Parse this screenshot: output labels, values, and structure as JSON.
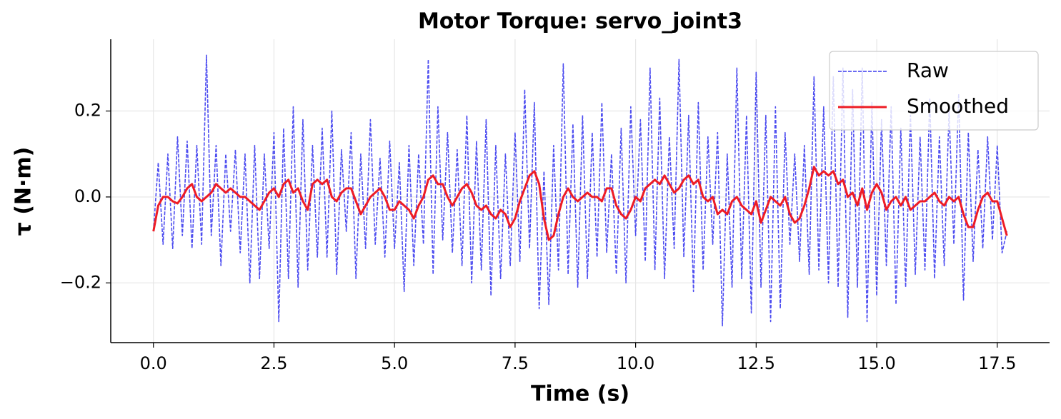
{
  "chart_data": {
    "type": "line",
    "title": "Motor Torque: servo_joint3",
    "x_label": "Time (s)",
    "y_label": "τ (N·m)",
    "x": [
      0,
      0.1,
      0.2,
      0.3,
      0.4,
      0.5,
      0.6,
      0.7,
      0.8,
      0.9,
      1,
      1.1,
      1.2,
      1.3,
      1.4,
      1.5,
      1.6,
      1.7,
      1.8,
      1.9,
      2,
      2.1,
      2.2,
      2.3,
      2.4,
      2.5,
      2.6,
      2.7,
      2.8,
      2.9,
      3,
      3.1,
      3.2,
      3.3,
      3.4,
      3.5,
      3.6,
      3.7,
      3.8,
      3.9,
      4,
      4.1,
      4.2,
      4.3,
      4.4,
      4.5,
      4.6,
      4.7,
      4.8,
      4.9,
      5,
      5.1,
      5.2,
      5.3,
      5.4,
      5.5,
      5.6,
      5.7,
      5.8,
      5.9,
      6,
      6.1,
      6.2,
      6.3,
      6.4,
      6.5,
      6.6,
      6.7,
      6.8,
      6.9,
      7,
      7.1,
      7.2,
      7.3,
      7.4,
      7.5,
      7.6,
      7.7,
      7.8,
      7.9,
      8,
      8.1,
      8.2,
      8.3,
      8.4,
      8.5,
      8.6,
      8.7,
      8.8,
      8.9,
      9,
      9.1,
      9.2,
      9.3,
      9.4,
      9.5,
      9.6,
      9.7,
      9.8,
      9.9,
      10,
      10.1,
      10.2,
      10.3,
      10.4,
      10.5,
      10.6,
      10.7,
      10.8,
      10.9,
      11,
      11.1,
      11.2,
      11.3,
      11.4,
      11.5,
      11.6,
      11.7,
      11.8,
      11.9,
      12,
      12.1,
      12.2,
      12.3,
      12.4,
      12.5,
      12.6,
      12.7,
      12.8,
      12.9,
      13,
      13.1,
      13.2,
      13.3,
      13.4,
      13.5,
      13.6,
      13.7,
      13.8,
      13.9,
      14,
      14.1,
      14.2,
      14.3,
      14.4,
      14.5,
      14.6,
      14.7,
      14.8,
      14.9,
      15,
      15.1,
      15.2,
      15.3,
      15.4,
      15.5,
      15.6,
      15.7,
      15.8,
      15.9,
      16,
      16.1,
      16.2,
      16.3,
      16.4,
      16.5,
      16.6,
      16.7,
      16.8,
      16.9,
      17,
      17.1,
      17.2,
      17.3,
      17.4,
      17.5,
      17.6,
      17.7
    ],
    "series": [
      {
        "name": "Raw",
        "color": "#3a3aee",
        "dashed": true,
        "values": [
          -0.08,
          0.08,
          -0.11,
          0.1,
          -0.12,
          0.14,
          -0.09,
          0.13,
          -0.12,
          0.12,
          -0.11,
          0.33,
          -0.09,
          0.12,
          -0.16,
          0.1,
          -0.08,
          0.11,
          -0.13,
          0.1,
          -0.2,
          0.12,
          -0.19,
          0.1,
          -0.12,
          0.15,
          -0.29,
          0.16,
          -0.19,
          0.21,
          -0.21,
          0.18,
          -0.17,
          0.12,
          -0.14,
          0.16,
          -0.14,
          0.2,
          -0.18,
          0.11,
          -0.08,
          0.15,
          -0.19,
          0.1,
          -0.12,
          0.18,
          -0.11,
          0.09,
          -0.14,
          0.13,
          -0.12,
          0.08,
          -0.22,
          0.12,
          -0.16,
          0.1,
          -0.11,
          0.32,
          -0.18,
          0.21,
          -0.1,
          0.15,
          -0.13,
          0.11,
          -0.16,
          0.19,
          -0.2,
          0.13,
          -0.17,
          0.18,
          -0.23,
          0.12,
          -0.19,
          0.1,
          -0.16,
          0.15,
          -0.15,
          0.25,
          -0.12,
          0.22,
          -0.26,
          0.06,
          -0.25,
          0.12,
          -0.17,
          0.31,
          -0.18,
          0.17,
          -0.21,
          0.19,
          -0.19,
          0.15,
          -0.14,
          0.22,
          -0.13,
          0.1,
          -0.18,
          0.16,
          -0.2,
          0.21,
          -0.09,
          0.18,
          -0.15,
          0.3,
          -0.17,
          0.23,
          -0.19,
          0.14,
          -0.12,
          0.32,
          -0.14,
          0.19,
          -0.22,
          0.22,
          -0.17,
          0.14,
          -0.11,
          0.15,
          -0.3,
          0.1,
          -0.21,
          0.3,
          -0.19,
          0.19,
          -0.27,
          0.29,
          -0.21,
          0.19,
          -0.29,
          0.21,
          -0.26,
          0.15,
          -0.11,
          0.1,
          -0.15,
          0.12,
          -0.18,
          0.28,
          -0.17,
          0.21,
          -0.2,
          0.28,
          -0.21,
          0.3,
          -0.28,
          0.25,
          -0.21,
          0.3,
          -0.29,
          0.22,
          -0.23,
          0.18,
          -0.16,
          0.21,
          -0.25,
          0.16,
          -0.21,
          0.19,
          -0.18,
          0.14,
          -0.17,
          0.23,
          -0.19,
          0.14,
          -0.16,
          0.2,
          -0.11,
          0.24,
          -0.24,
          0.15,
          -0.15,
          0.11,
          -0.12,
          0.14,
          -0.1,
          0.12,
          -0.13,
          -0.08
        ]
      },
      {
        "name": "Smoothed",
        "color": "#ee1c25",
        "dashed": false,
        "values": [
          -0.08,
          -0.02,
          0.0,
          0.0,
          -0.01,
          -0.015,
          0.0,
          0.02,
          0.03,
          0.0,
          -0.01,
          0.0,
          0.01,
          0.03,
          0.02,
          0.01,
          0.02,
          0.01,
          0.0,
          0.0,
          -0.01,
          -0.02,
          -0.03,
          -0.01,
          0.01,
          0.02,
          0.0,
          0.03,
          0.04,
          0.01,
          0.02,
          -0.01,
          -0.03,
          0.03,
          0.04,
          0.03,
          0.04,
          0.0,
          -0.01,
          0.01,
          0.02,
          0.02,
          -0.01,
          -0.04,
          -0.02,
          0.0,
          0.01,
          0.02,
          0.0,
          -0.03,
          -0.03,
          -0.01,
          -0.02,
          -0.03,
          -0.05,
          -0.02,
          0.0,
          0.04,
          0.05,
          0.03,
          0.03,
          0.0,
          -0.02,
          0.0,
          0.02,
          0.03,
          0.01,
          -0.02,
          -0.03,
          -0.02,
          -0.04,
          -0.05,
          -0.03,
          -0.04,
          -0.07,
          -0.05,
          -0.01,
          0.02,
          0.05,
          0.06,
          0.03,
          -0.05,
          -0.1,
          -0.09,
          -0.04,
          0.0,
          0.02,
          0.0,
          -0.01,
          0.0,
          0.01,
          0.0,
          0.0,
          -0.01,
          0.02,
          0.02,
          -0.02,
          -0.04,
          -0.05,
          -0.03,
          0.0,
          -0.01,
          0.02,
          0.03,
          0.04,
          0.03,
          0.05,
          0.03,
          0.01,
          0.02,
          0.04,
          0.05,
          0.03,
          0.04,
          0.0,
          -0.01,
          0.0,
          -0.04,
          -0.03,
          -0.04,
          -0.01,
          0.0,
          -0.02,
          -0.03,
          -0.04,
          -0.01,
          -0.06,
          -0.03,
          0.0,
          -0.01,
          -0.02,
          0.0,
          -0.04,
          -0.06,
          -0.05,
          -0.02,
          0.02,
          0.07,
          0.05,
          0.06,
          0.05,
          0.06,
          0.03,
          0.04,
          0.0,
          0.01,
          -0.02,
          0.02,
          -0.03,
          0.01,
          0.03,
          0.01,
          -0.03,
          -0.01,
          0.0,
          -0.02,
          0.0,
          -0.03,
          -0.02,
          -0.01,
          -0.01,
          0.0,
          0.01,
          -0.01,
          -0.02,
          0.0,
          -0.01,
          0.0,
          -0.04,
          -0.07,
          -0.07,
          -0.03,
          0.0,
          0.01,
          -0.01,
          -0.01,
          -0.05,
          -0.09
        ]
      }
    ],
    "xlim": [
      -0.885,
      18.585
    ],
    "ylim": [
      -0.339,
      0.367
    ],
    "xticks": [
      {
        "value": 0,
        "label": "0.0"
      },
      2.5,
      {
        "value": 5,
        "label": "5.0"
      },
      7.5,
      {
        "value": 10,
        "label": "10.0"
      },
      12.5,
      {
        "value": 15,
        "label": "15.0"
      },
      17.5
    ],
    "yticks": [
      {
        "value": -0.2,
        "label": "−0.2"
      },
      {
        "value": 0,
        "label": "0.0"
      },
      0.2
    ],
    "grid": true,
    "legend": "upper right"
  }
}
